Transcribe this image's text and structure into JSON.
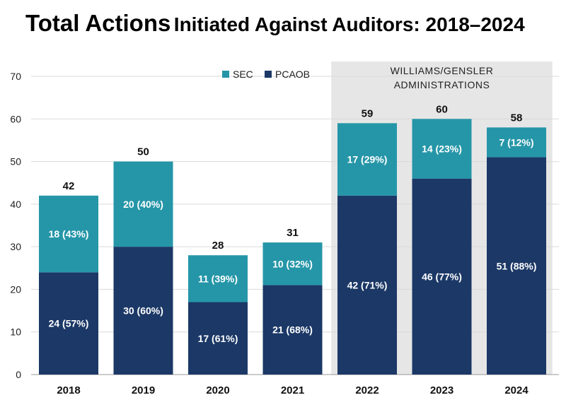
{
  "title_part1": "Total Actions",
  "title_part2": "Initiated Against Auditors: 2018–2024",
  "chart_data": {
    "type": "bar",
    "stacked": true,
    "title": "Total Actions Initiated Against Auditors: 2018–2024",
    "categories": [
      "2018",
      "2019",
      "2020",
      "2021",
      "2022",
      "2023",
      "2024"
    ],
    "series": [
      {
        "name": "PCAOB",
        "color": "#1b3866",
        "values": [
          24,
          30,
          17,
          21,
          42,
          46,
          51
        ],
        "labels": [
          "24 (57%)",
          "30 (60%)",
          "17 (61%)",
          "21 (68%)",
          "42 (71%)",
          "46 (77%)",
          "51 (88%)"
        ]
      },
      {
        "name": "SEC",
        "color": "#2596a8",
        "values": [
          18,
          20,
          11,
          10,
          17,
          14,
          7
        ],
        "labels": [
          "18 (43%)",
          "20 (40%)",
          "11 (39%)",
          "10 (32%)",
          "17 (29%)",
          "14 (23%)",
          "7 (12%)"
        ]
      }
    ],
    "totals": [
      42,
      50,
      28,
      31,
      59,
      60,
      58
    ],
    "ylim": [
      0,
      70
    ],
    "yticks": [
      0,
      10,
      20,
      30,
      40,
      50,
      60,
      70
    ],
    "grid": true,
    "legend": {
      "position": "top",
      "order": [
        "SEC",
        "PCAOB"
      ]
    },
    "highlight": {
      "from": "2022",
      "to": "2024",
      "label_lines": [
        "WILLIAMS/GENSLER",
        "ADMINISTRATIONS"
      ],
      "color": "#e6e6e6"
    }
  }
}
